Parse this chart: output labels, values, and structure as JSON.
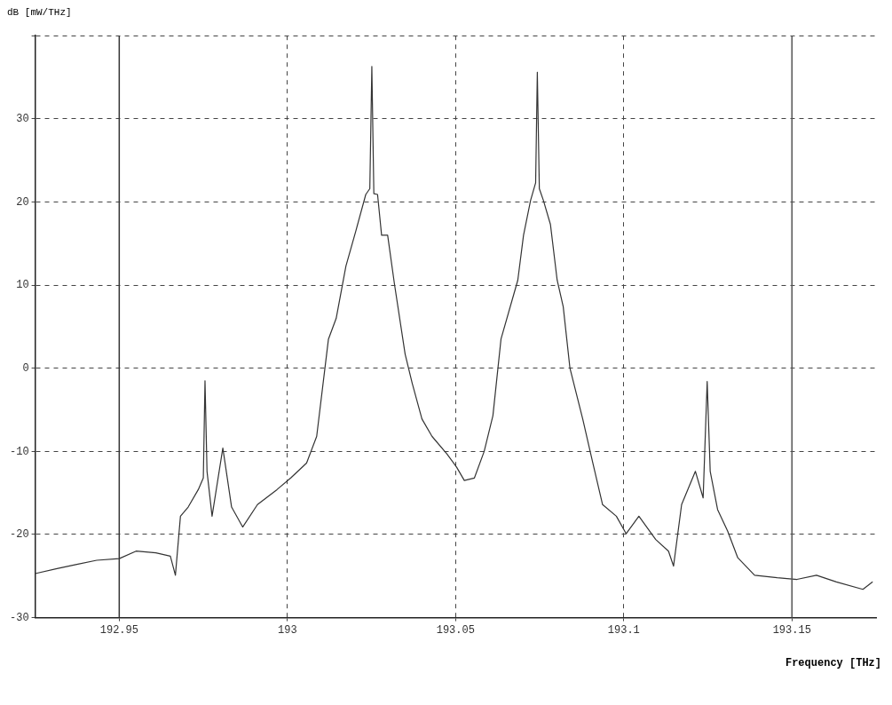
{
  "chart_data": {
    "type": "line",
    "xlabel": "Frequency [THz]",
    "ylabel": "dB [mW/THz]",
    "xlim": [
      192.925,
      193.175
    ],
    "xticks": [
      192.95,
      193,
      193.05,
      193.1,
      193.15
    ],
    "ylim": [
      -30,
      40
    ],
    "yticks": [
      -30,
      -20,
      -10,
      0,
      10,
      20,
      30,
      {
        "value": 40,
        "label": null
      }
    ],
    "grid": true,
    "marker": "none",
    "line_style": "solid",
    "ref_lines": [
      {
        "axis": "x",
        "value": 192.95,
        "color": "#333333"
      },
      {
        "axis": "x",
        "value": 193.15,
        "color": "#555555"
      }
    ],
    "series": [
      {
        "color": "#333333",
        "x": [
          192.925,
          192.9315,
          192.9374,
          192.9433,
          192.95,
          192.955,
          192.9609,
          192.9652,
          192.9667,
          192.9682,
          192.9705,
          192.9735,
          192.975,
          192.9755,
          192.9761,
          192.9776,
          192.9808,
          192.9834,
          192.9867,
          192.9911,
          192.9969,
          193.001,
          193.0057,
          193.0087,
          193.0122,
          193.0145,
          193.0174,
          193.0204,
          193.0233,
          193.0245,
          193.0251,
          193.0257,
          193.0268,
          193.028,
          193.0298,
          193.0318,
          193.035,
          193.0371,
          193.04,
          193.043,
          193.0474,
          193.0503,
          193.0526,
          193.0556,
          193.0585,
          193.0611,
          193.0635,
          193.0685,
          193.0702,
          193.0723,
          193.0738,
          193.0743,
          193.0749,
          193.0761,
          193.0782,
          193.0802,
          193.082,
          193.084,
          193.0878,
          193.0908,
          193.0937,
          193.0978,
          193.1007,
          193.1045,
          193.1095,
          193.1133,
          193.1148,
          193.1172,
          193.1213,
          193.1236,
          193.1248,
          193.1257,
          193.1279,
          193.1309,
          193.1339,
          193.1389,
          193.1456,
          193.1515,
          193.1573,
          193.1632,
          193.1711,
          193.174
        ],
        "values": [
          -24.7,
          -24.1,
          -23.6,
          -23.1,
          -22.9,
          -22.0,
          -22.2,
          -22.6,
          -24.9,
          -17.8,
          -16.7,
          -14.6,
          -13.2,
          -1.5,
          -12.4,
          -17.8,
          -9.6,
          -16.7,
          -19.1,
          -16.4,
          -14.6,
          -13.2,
          -11.4,
          -8.2,
          3.5,
          6.0,
          12.3,
          16.6,
          20.9,
          21.6,
          36.3,
          21.0,
          20.9,
          16.0,
          16.0,
          10.2,
          1.7,
          -1.8,
          -6.1,
          -8.2,
          -10.3,
          -11.9,
          -13.5,
          -13.2,
          -10.0,
          -5.7,
          3.5,
          10.6,
          16.0,
          20.2,
          22.3,
          35.6,
          21.6,
          20.2,
          17.3,
          10.6,
          7.4,
          0.0,
          -6.1,
          -11.4,
          -16.4,
          -17.8,
          -19.9,
          -17.8,
          -20.6,
          -22.0,
          -23.8,
          -16.4,
          -12.4,
          -15.6,
          -1.6,
          -12.4,
          -17.0,
          -19.6,
          -22.8,
          -24.9,
          -25.2,
          -25.4,
          -24.9,
          -25.7,
          -26.6,
          -25.7
        ]
      }
    ]
  }
}
